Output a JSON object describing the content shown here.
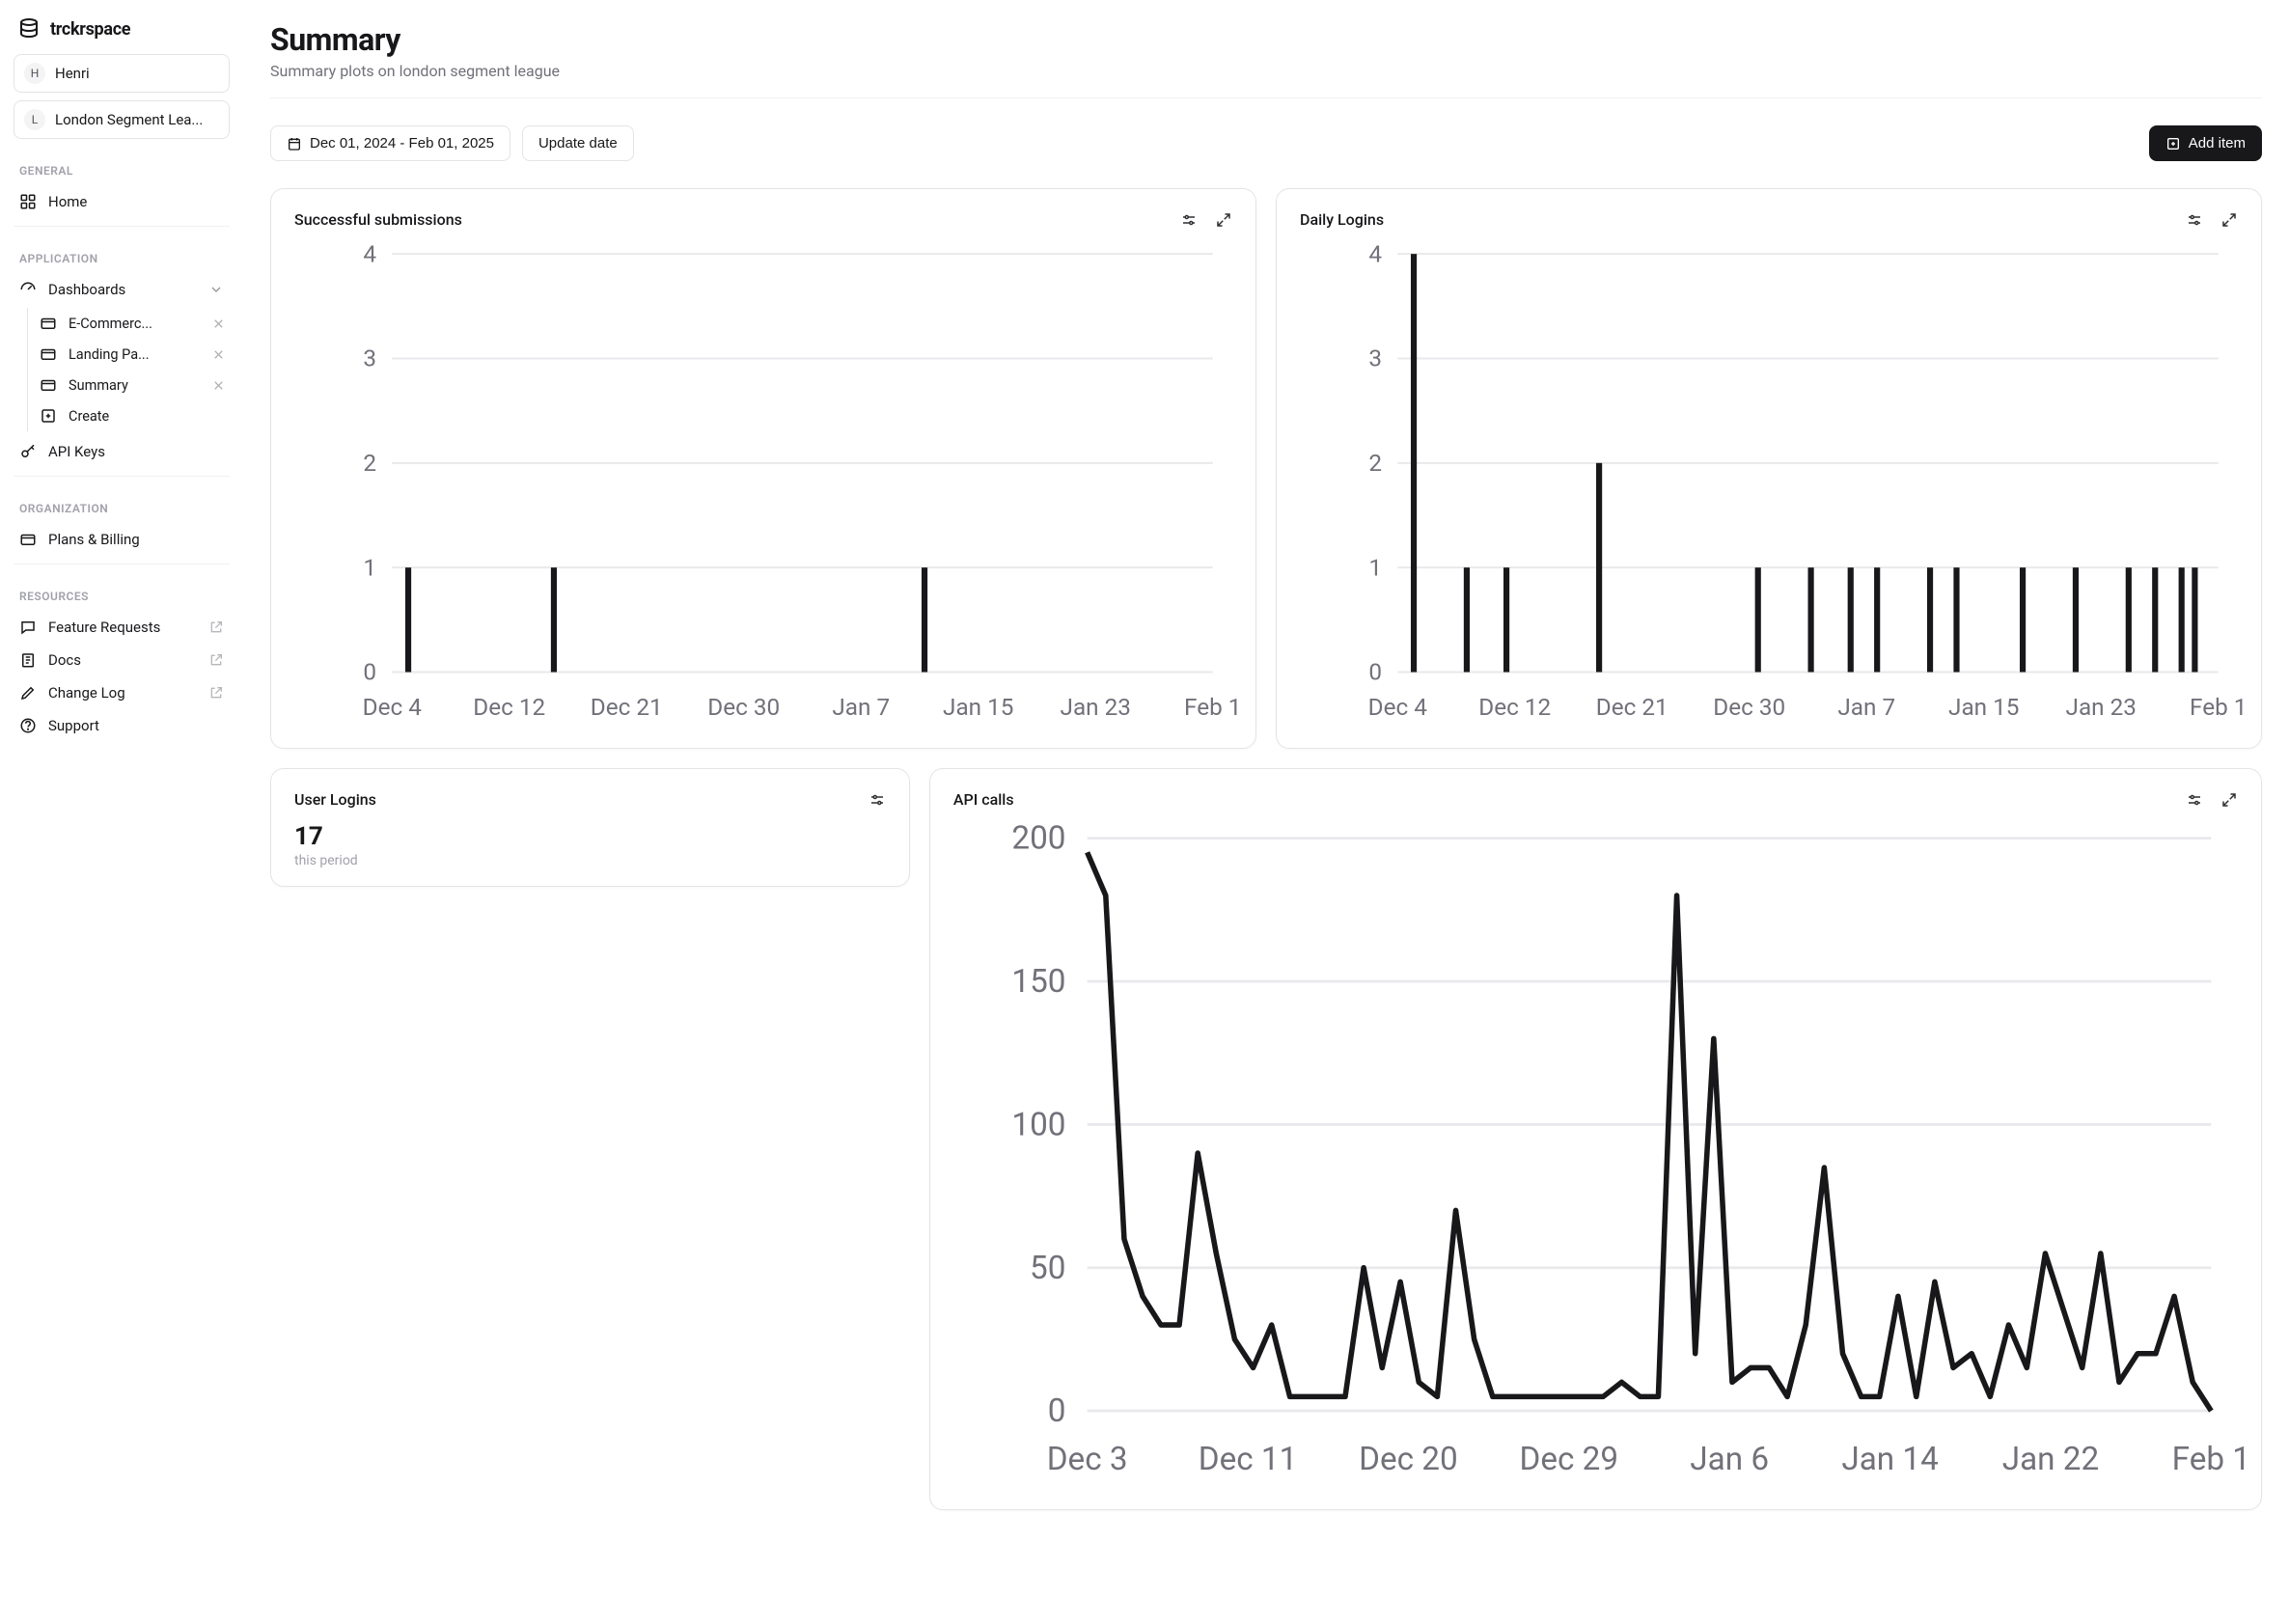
{
  "brand": "trckrspace",
  "user": {
    "initial": "H",
    "name": "Henri"
  },
  "workspace": {
    "initial": "L",
    "name": "London Segment Lea..."
  },
  "sections": {
    "general": "GENERAL",
    "application": "APPLICATION",
    "organization": "ORGANIZATION",
    "resources": "RESOURCES"
  },
  "nav": {
    "home": "Home",
    "dashboards": "Dashboards",
    "dashboards_children": [
      {
        "label": "E-Commerc..."
      },
      {
        "label": "Landing Pa..."
      },
      {
        "label": "Summary"
      }
    ],
    "create": "Create",
    "api_keys": "API Keys",
    "plans_billing": "Plans & Billing",
    "feature_requests": "Feature Requests",
    "docs": "Docs",
    "change_log": "Change Log",
    "support": "Support"
  },
  "page": {
    "title": "Summary",
    "subtitle": "Summary plots on london segment league"
  },
  "toolbar": {
    "date_range": "Dec 01, 2024 - Feb 01, 2025",
    "update_date": "Update date",
    "add_item": "Add item"
  },
  "colors": {
    "bar_color": "#18181b",
    "line_color": "#18181b",
    "grid_color": "#e9e9ec",
    "axis_text": "#71717a",
    "card_border": "#e4e4e7"
  },
  "cards": {
    "submissions": {
      "title": "Successful submissions",
      "type": "bar",
      "ylim": [
        0,
        4
      ],
      "ytick_step": 1,
      "xlabels": [
        "Dec 4",
        "Dec 12",
        "Dec 21",
        "Dec 30",
        "Jan 7",
        "Jan 15",
        "Jan 23",
        "Feb 1"
      ],
      "n_slots": 62,
      "bars": [
        {
          "slot": 1,
          "value": 1
        },
        {
          "slot": 12,
          "value": 1
        },
        {
          "slot": 40,
          "value": 1
        }
      ]
    },
    "daily_logins": {
      "title": "Daily Logins",
      "type": "bar",
      "ylim": [
        0,
        4
      ],
      "ytick_step": 1,
      "xlabels": [
        "Dec 4",
        "Dec 12",
        "Dec 21",
        "Dec 30",
        "Jan 7",
        "Jan 15",
        "Jan 23",
        "Feb 1"
      ],
      "n_slots": 62,
      "bars": [
        {
          "slot": 1,
          "value": 4
        },
        {
          "slot": 5,
          "value": 1
        },
        {
          "slot": 8,
          "value": 1
        },
        {
          "slot": 15,
          "value": 2
        },
        {
          "slot": 27,
          "value": 1
        },
        {
          "slot": 31,
          "value": 1
        },
        {
          "slot": 34,
          "value": 1
        },
        {
          "slot": 36,
          "value": 1
        },
        {
          "slot": 40,
          "value": 1
        },
        {
          "slot": 42,
          "value": 1
        },
        {
          "slot": 47,
          "value": 1
        },
        {
          "slot": 51,
          "value": 1
        },
        {
          "slot": 55,
          "value": 1
        },
        {
          "slot": 57,
          "value": 1
        },
        {
          "slot": 59,
          "value": 1
        },
        {
          "slot": 60,
          "value": 1
        }
      ]
    },
    "user_logins": {
      "title": "User Logins",
      "value": "17",
      "sub": "this period"
    },
    "api_calls": {
      "title": "API calls",
      "type": "line",
      "ylim": [
        0,
        200
      ],
      "ytick_step": 50,
      "xlabels": [
        "Dec 3",
        "Dec 11",
        "Dec 20",
        "Dec 29",
        "Jan 6",
        "Jan 14",
        "Jan 22",
        "Feb 1"
      ],
      "values": [
        195,
        180,
        60,
        40,
        30,
        30,
        90,
        55,
        25,
        15,
        30,
        5,
        5,
        5,
        5,
        50,
        15,
        45,
        10,
        5,
        70,
        25,
        5,
        5,
        5,
        5,
        5,
        5,
        5,
        10,
        5,
        5,
        180,
        20,
        130,
        10,
        15,
        15,
        5,
        30,
        85,
        20,
        5,
        5,
        40,
        5,
        45,
        15,
        20,
        5,
        30,
        15,
        55,
        35,
        15,
        55,
        10,
        20,
        20,
        40,
        10,
        0
      ]
    }
  }
}
